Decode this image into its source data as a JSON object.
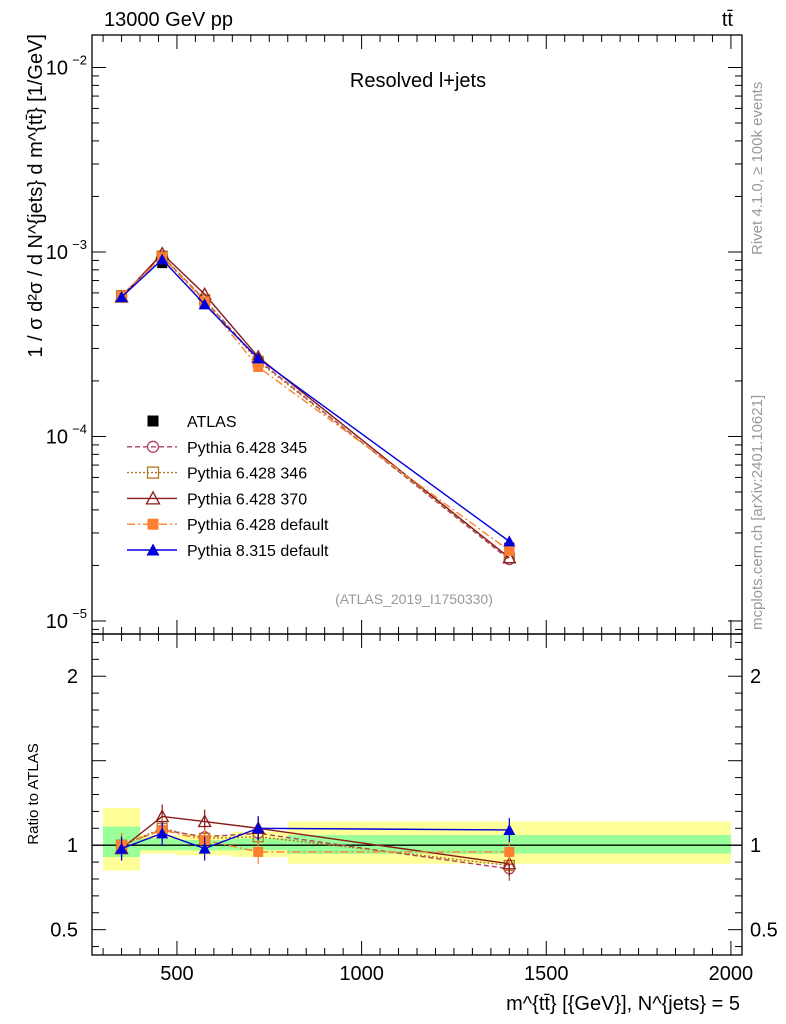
{
  "header": {
    "energy_label": "13000 GeV pp",
    "process_label": "tt̄"
  },
  "side_labels": {
    "rivet": "Rivet 4.1.0, ≥ 100k events",
    "mcplots": "mcplots.cern.ch [arXiv:2401.10621]"
  },
  "chart_data": [
    {
      "type": "line",
      "panel": "main",
      "title": "Resolved l+jets",
      "analysis_id": "(ATLAS_2019_I1750330)",
      "ylabel": "1 / σ d²σ / d N^{jets} d m^{tt̄} [1/GeV]",
      "yscale": "log",
      "ylim": [
        8.5e-06,
        0.015
      ],
      "xlim": [
        270,
        2030
      ],
      "y_ticks": [
        {
          "value": 0.01,
          "base": "10",
          "exp": "−2"
        },
        {
          "value": 0.001,
          "base": "10",
          "exp": "−3"
        },
        {
          "value": 0.0001,
          "base": "10",
          "exp": "−4"
        },
        {
          "value": 1e-05,
          "base": "10",
          "exp": "−5"
        }
      ],
      "x": [
        350,
        460,
        575,
        720,
        1400
      ],
      "series": [
        {
          "name": "ATLAS",
          "color": "#000000",
          "marker": "square-filled",
          "dash": "none",
          "values": [
            0.00058,
            0.00087,
            0.00053,
            0.00025,
            2.5e-05
          ]
        },
        {
          "name": "Pythia 6.428 345",
          "color": "#b04060",
          "marker": "circle-open",
          "dash": "5,3",
          "values": [
            0.00058,
            0.00095,
            0.00055,
            0.00026,
            2.15e-05
          ]
        },
        {
          "name": "Pythia 6.428 346",
          "color": "#b07820",
          "marker": "square-open",
          "dash": "2,2",
          "values": [
            0.00058,
            0.00095,
            0.00055,
            0.000255,
            2.2e-05
          ]
        },
        {
          "name": "Pythia 6.428 370",
          "color": "#8b1a1a",
          "marker": "triangle-open",
          "dash": "none",
          "values": [
            0.00057,
            0.00098,
            0.00059,
            0.00027,
            2.2e-05
          ]
        },
        {
          "name": "Pythia 6.428 default",
          "color": "#ff7f30",
          "marker": "square-filled",
          "dash": "8,3,2,3",
          "values": [
            0.00058,
            0.00094,
            0.00054,
            0.000238,
            2.4e-05
          ]
        },
        {
          "name": "Pythia 8.315 default",
          "color": "#0000dd",
          "marker": "triangle-filled",
          "dash": "none",
          "values": [
            0.00057,
            0.00091,
            0.00052,
            0.000265,
            2.7e-05
          ]
        }
      ]
    },
    {
      "type": "line",
      "panel": "ratio",
      "ylabel": "Ratio to ATLAS",
      "ylim": [
        0.35,
        2.25
      ],
      "xlim": [
        270,
        2030
      ],
      "y_ticks": [
        {
          "value": 2,
          "label": "2"
        },
        {
          "value": 1,
          "label": "1"
        },
        {
          "value": 0.5,
          "label": "0.5"
        }
      ],
      "x_ticks": [
        {
          "value": 500,
          "label": "500"
        },
        {
          "value": 1000,
          "label": "1000"
        },
        {
          "value": 1500,
          "label": "1500"
        },
        {
          "value": 2000,
          "label": "2000"
        }
      ],
      "xlabel": "m^{tt̄} [{GeV}], N^{jets} = 5",
      "x": [
        350,
        460,
        575,
        720,
        1400
      ],
      "uncertainty_bands": [
        {
          "x0": 300,
          "x1": 400,
          "outer": [
            0.85,
            1.22
          ],
          "inner": [
            0.93,
            1.11
          ]
        },
        {
          "x0": 400,
          "x1": 500,
          "outer": [
            0.95,
            1.06
          ],
          "inner": [
            0.97,
            1.04
          ]
        },
        {
          "x0": 500,
          "x1": 650,
          "outer": [
            0.94,
            1.06
          ],
          "inner": [
            0.97,
            1.03
          ]
        },
        {
          "x0": 650,
          "x1": 800,
          "outer": [
            0.93,
            1.08
          ],
          "inner": [
            0.97,
            1.04
          ]
        },
        {
          "x0": 800,
          "x1": 2000,
          "outer": [
            0.89,
            1.14
          ],
          "inner": [
            0.95,
            1.06
          ]
        }
      ],
      "series": [
        {
          "name": "Pythia 6.428 345",
          "values": [
            1.0,
            1.09,
            1.05,
            1.07,
            0.86
          ]
        },
        {
          "name": "Pythia 6.428 346",
          "values": [
            1.0,
            1.1,
            1.04,
            1.05,
            0.88
          ]
        },
        {
          "name": "Pythia 6.428 370",
          "values": [
            0.98,
            1.17,
            1.14,
            1.1,
            0.89
          ]
        },
        {
          "name": "Pythia 6.428 default",
          "values": [
            1.0,
            1.09,
            1.03,
            0.96,
            0.96
          ]
        },
        {
          "name": "Pythia 8.315 default",
          "values": [
            0.98,
            1.07,
            0.98,
            1.1,
            1.09
          ]
        }
      ]
    }
  ]
}
